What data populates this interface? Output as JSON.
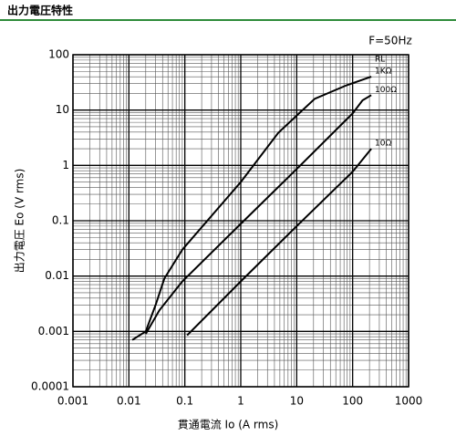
{
  "header": {
    "title": "出力電圧特性"
  },
  "chart_data": {
    "type": "line",
    "annotation": "F=50Hz",
    "legend_title": "RL",
    "xlabel": "貫通電流 Io (A rms)",
    "ylabel": "出力電圧 Eo (V rms)",
    "log_x": true,
    "log_y": true,
    "grid": true,
    "xlim": [
      0.001,
      1000
    ],
    "xticks": [
      0.001,
      0.01,
      0.1,
      1,
      10,
      100,
      1000
    ],
    "ylim": [
      0.0001,
      100
    ],
    "yticks": [
      0.0001,
      0.001,
      0.01,
      0.1,
      1,
      10,
      100
    ],
    "series": [
      {
        "name": "1KΩ",
        "color": "#000000",
        "x": [
          0.0115,
          0.02,
          0.03,
          0.043,
          0.09,
          1,
          4.7,
          21,
          78,
          215
        ],
        "values": [
          0.0007,
          0.001,
          0.003,
          0.009,
          0.03,
          0.5,
          3.9,
          16,
          28,
          40
        ]
      },
      {
        "name": "100Ω",
        "color": "#000000",
        "x": [
          0.02,
          0.035,
          0.09,
          1,
          10,
          100,
          150,
          215
        ],
        "values": [
          0.0009,
          0.0024,
          0.008,
          0.088,
          0.86,
          8.7,
          15,
          18.6
        ]
      },
      {
        "name": "10Ω",
        "color": "#000000",
        "x": [
          0.11,
          1,
          10,
          100,
          215
        ],
        "values": [
          0.00085,
          0.008,
          0.08,
          0.77,
          2
        ]
      }
    ]
  }
}
